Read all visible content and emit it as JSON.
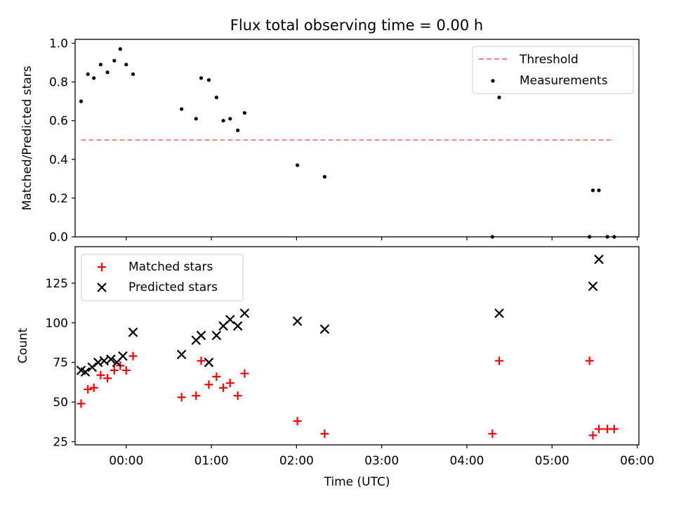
{
  "chart_data": [
    {
      "type": "scatter",
      "title": "Flux total observing time = 0.00 h",
      "xlabel": "",
      "ylabel": "Matched/Predicted stars",
      "xlim": [
        -0.6,
        6.02
      ],
      "ylim": [
        0.0,
        1.02
      ],
      "yticks": [
        0.0,
        0.2,
        0.4,
        0.6,
        0.8,
        1.0
      ],
      "ytick_labels": [
        "0.0",
        "0.2",
        "0.4",
        "0.6",
        "0.8",
        "1.0"
      ],
      "xticks": [
        0,
        1,
        2,
        3,
        4,
        5,
        6
      ],
      "grid": false,
      "legend": "top-right",
      "threshold": {
        "label": "Threshold",
        "value": 0.5,
        "x": [
          -0.53,
          5.73
        ],
        "color": "#ff7f7f"
      },
      "series": [
        {
          "name": "Measurements",
          "color": "#000000",
          "x": [
            -0.53,
            -0.45,
            -0.38,
            -0.3,
            -0.22,
            -0.14,
            -0.07,
            0.0,
            0.08,
            0.65,
            0.82,
            0.88,
            0.97,
            1.06,
            1.14,
            1.22,
            1.31,
            1.39,
            2.01,
            2.33,
            4.3,
            4.38,
            5.44,
            5.48,
            5.55,
            5.65,
            5.73
          ],
          "y": [
            0.7,
            0.84,
            0.82,
            0.89,
            0.85,
            0.91,
            0.97,
            0.89,
            0.84,
            0.66,
            0.61,
            0.82,
            0.81,
            0.72,
            0.6,
            0.61,
            0.55,
            0.64,
            0.37,
            0.31,
            0.0,
            0.72,
            0.0,
            0.24,
            0.24,
            0.0,
            0.0
          ]
        }
      ]
    },
    {
      "type": "scatter",
      "title": "",
      "xlabel": "Time (UTC)",
      "ylabel": "Count",
      "xlim": [
        -0.6,
        6.02
      ],
      "ylim": [
        23,
        148
      ],
      "yticks": [
        25,
        50,
        75,
        100,
        125
      ],
      "ytick_labels": [
        "25",
        "50",
        "75",
        "100",
        "125"
      ],
      "xticks": [
        0,
        1,
        2,
        3,
        4,
        5,
        6
      ],
      "xtick_labels": [
        "00:00",
        "01:00",
        "02:00",
        "03:00",
        "04:00",
        "05:00",
        "06:00"
      ],
      "grid": false,
      "legend": "top-left",
      "series": [
        {
          "name": "Matched stars",
          "marker": "plus",
          "color": "#ff0000",
          "x": [
            -0.53,
            -0.45,
            -0.38,
            -0.3,
            -0.22,
            -0.14,
            -0.07,
            0.0,
            0.08,
            0.65,
            0.82,
            0.88,
            0.97,
            1.06,
            1.14,
            1.22,
            1.31,
            1.39,
            2.01,
            2.33,
            4.3,
            4.38,
            5.44,
            5.48,
            5.55,
            5.65,
            5.73
          ],
          "y": [
            49,
            58,
            59,
            67,
            65,
            70,
            73,
            70,
            79,
            53,
            54,
            76,
            61,
            66,
            59,
            62,
            54,
            68,
            38,
            30,
            30,
            76,
            76,
            29,
            33,
            33,
            33
          ]
        },
        {
          "name": "Predicted stars",
          "marker": "x",
          "color": "#000000",
          "x": [
            -0.53,
            -0.48,
            -0.4,
            -0.33,
            -0.26,
            -0.18,
            -0.11,
            -0.04,
            0.08,
            0.65,
            0.82,
            0.88,
            0.97,
            1.06,
            1.14,
            1.22,
            1.31,
            1.39,
            2.01,
            2.33,
            4.38,
            5.48,
            5.55
          ],
          "y": [
            70,
            69,
            72,
            75,
            76,
            77,
            75,
            79,
            94,
            80,
            89,
            92,
            75,
            92,
            98,
            102,
            98,
            106,
            101,
            96,
            106,
            123,
            140
          ]
        }
      ]
    }
  ]
}
